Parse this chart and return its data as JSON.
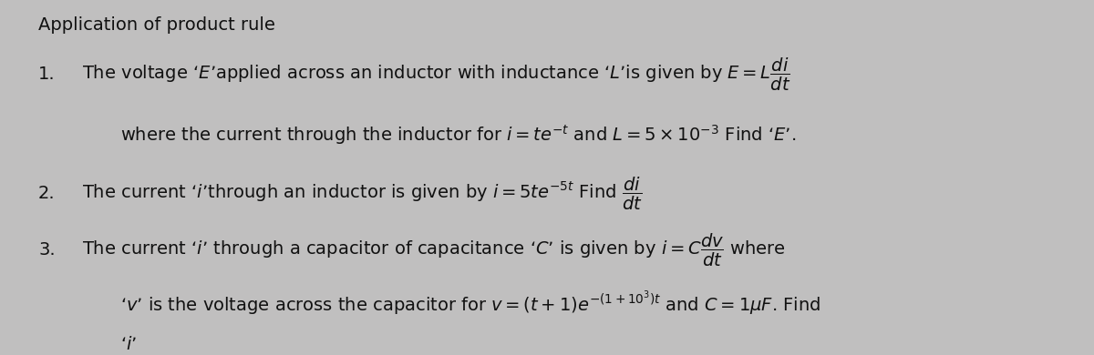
{
  "title": "Application of product rule",
  "bg_color": "#c0bfbf",
  "text_color": "#111111",
  "title_fontsize": 14,
  "body_fontsize": 14,
  "line1_num": "1.",
  "line1_main": "The voltage ‘$E$’applied across an inductor with inductance ‘$L$’is given by $E = L\\dfrac{di}{dt}$",
  "line2_main": "where the current through the inductor for $i = te^{-t}$ and $L = 5 \\times 10^{-3}$ Find ‘$E$’.",
  "line3_num": "2.",
  "line3_main": "The current ‘$i$’through an inductor is given by $i = 5te^{-5t}$ Find $\\dfrac{di}{dt}$",
  "line4_num": "3.",
  "line4_main": "The current ‘$i$’ through a capacitor of capacitance ‘$C$’ is given by $i = C\\dfrac{dv}{dt}$ where",
  "line5_main": "‘$v$’ is the voltage across the capacitor for $v = (t + 1)e^{-(1+10^3)t}$ and $C = 1\\mu F$. Find",
  "line6_main": "‘$i$’"
}
